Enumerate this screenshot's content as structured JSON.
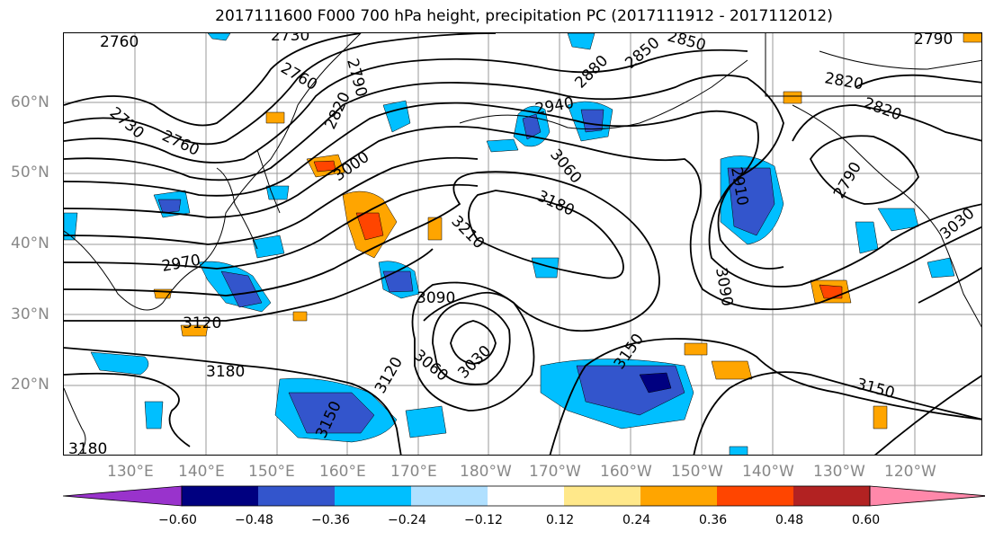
{
  "title": "2017111600 F000 700 hPa height, precipitation PC (2017111912 - 2017112012)",
  "lat_labels": [
    "60°N",
    "50°N",
    "40°N",
    "30°N",
    "20°N"
  ],
  "lon_labels": [
    "130°E",
    "140°E",
    "150°E",
    "160°E",
    "170°E",
    "180°W",
    "170°W",
    "160°W",
    "150°W",
    "140°W",
    "130°W",
    "120°W"
  ],
  "contour_labels": [
    "2760",
    "2730",
    "2760",
    "2790",
    "2850",
    "2790",
    "2730",
    "2760",
    "2820",
    "2880",
    "2940",
    "2850",
    "3000",
    "3060",
    "2820",
    "2820",
    "3180",
    "2910",
    "2790",
    "3210",
    "2970",
    "3090",
    "3090",
    "3030",
    "3120",
    "3030",
    "3060",
    "3150",
    "3180",
    "3120",
    "3150",
    "3150",
    "3180"
  ],
  "colorbar": {
    "colors": [
      "#9933cc",
      "#000080",
      "#3355cc",
      "#00bfff",
      "#b0e0ff",
      "#ffffff",
      "#ffe88a",
      "#ffa500",
      "#ff4500",
      "#b22222",
      "#ff88aa"
    ],
    "tick_labels": [
      "−0.60",
      "−0.48",
      "−0.36",
      "−0.24",
      "−0.12",
      "0.12",
      "0.24",
      "0.36",
      "0.48",
      "0.60"
    ]
  }
}
